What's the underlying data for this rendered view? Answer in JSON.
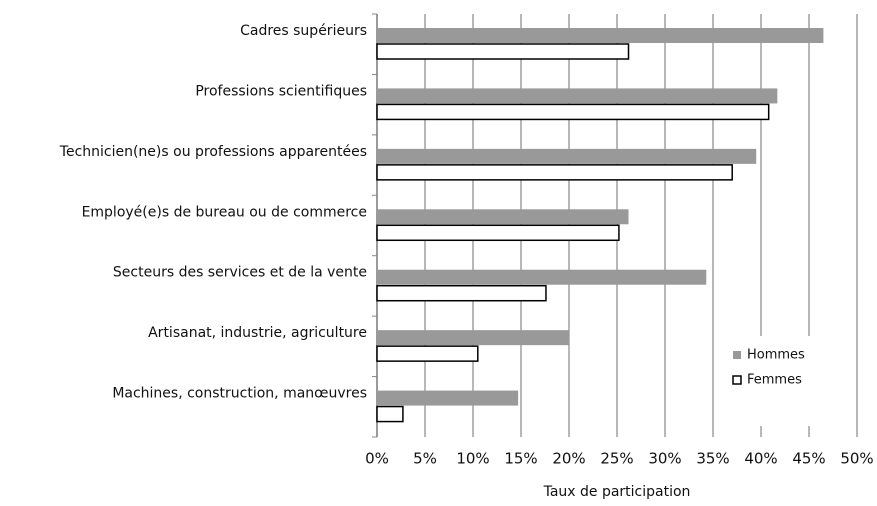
{
  "chart_data": {
    "type": "bar",
    "orientation": "horizontal",
    "x_label": "Taux de participation",
    "categories": [
      "Cadres supérieurs",
      "Professions scientifiques",
      "Technicien(ne)s ou professions apparentées",
      "Employé(e)s de bureau ou de commerce",
      "Secteurs des services et  de la vente",
      "Artisanat, industrie, agriculture",
      "Machines, construction, manœuvres"
    ],
    "series": [
      {
        "name": "Hommes",
        "color": "#999999",
        "values": [
          46.5,
          41.7,
          39.5,
          26.2,
          34.3,
          20,
          14.7
        ]
      },
      {
        "name": "Femmes",
        "color": "#ffffff",
        "values": [
          26.2,
          40.8,
          37,
          25.2,
          17.6,
          10.5,
          2.7
        ]
      }
    ],
    "xlim": [
      0,
      50
    ],
    "xticks": [
      {
        "value": 0,
        "label": "0%"
      },
      {
        "value": 5,
        "label": "5%"
      },
      {
        "value": 10,
        "label": "10%"
      },
      {
        "value": 15,
        "label": "15%"
      },
      {
        "value": 20,
        "label": "20%"
      },
      {
        "value": 25,
        "label": "25%"
      },
      {
        "value": 30,
        "label": "30%"
      },
      {
        "value": 35,
        "label": "35%"
      },
      {
        "value": 40,
        "label": "40%"
      },
      {
        "value": 45,
        "label": "45%"
      },
      {
        "value": 50,
        "label": "50%"
      }
    ],
    "grid": true,
    "legend": "lower right"
  }
}
